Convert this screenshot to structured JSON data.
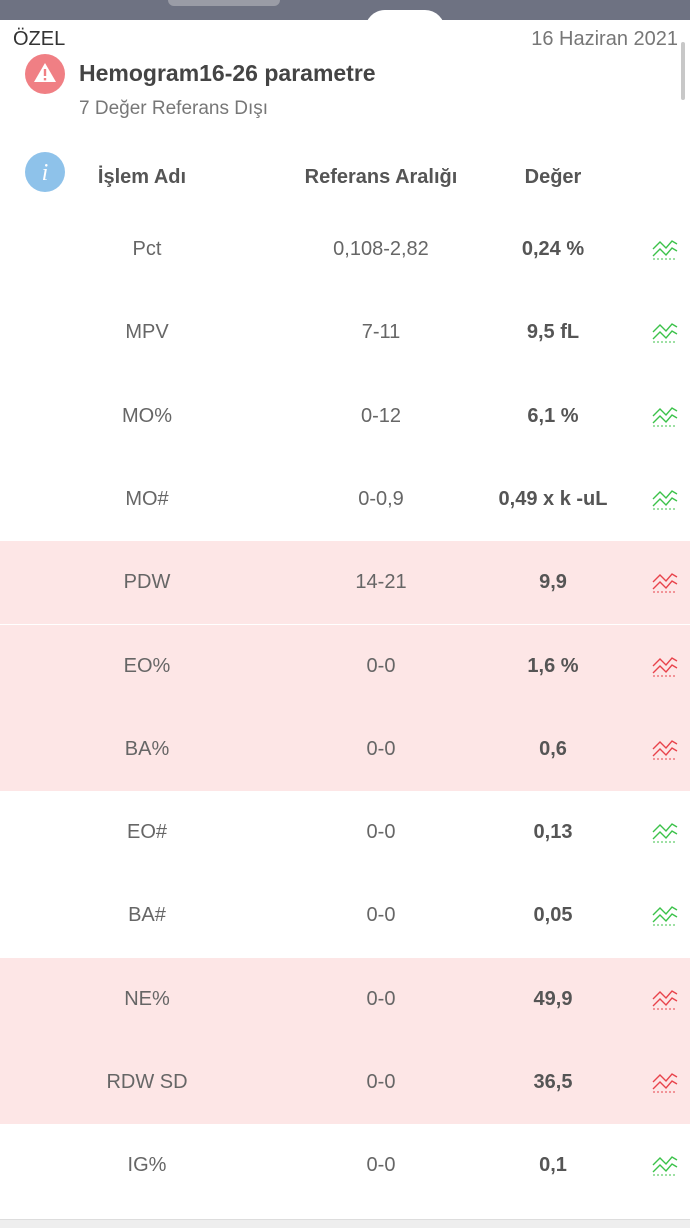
{
  "header": {
    "left_label": "ÖZEL",
    "date": "16 Haziran 2021",
    "title": "Hemogram16-26 parametre",
    "subtitle": "7 Değer Referans Dışı"
  },
  "table": {
    "columns": [
      "İşlem Adı",
      "Referans Aralığı",
      "Değer"
    ],
    "rows": [
      {
        "name": "Pct",
        "range": "0,108-2,82",
        "value": "0,24 %",
        "out_of_range": false
      },
      {
        "name": "MPV",
        "range": "7-11",
        "value": "9,5 fL",
        "out_of_range": false
      },
      {
        "name": "MO%",
        "range": "0-12",
        "value": "6,1 %",
        "out_of_range": false
      },
      {
        "name": "MO#",
        "range": "0-0,9",
        "value": "0,49 x k -uL",
        "out_of_range": false
      },
      {
        "name": "PDW",
        "range": "14-21",
        "value": "9,9",
        "out_of_range": true
      },
      {
        "name": "EO%",
        "range": "0-0",
        "value": "1,6 %",
        "out_of_range": true
      },
      {
        "name": "BA%",
        "range": "0-0",
        "value": "0,6",
        "out_of_range": true
      },
      {
        "name": "EO#",
        "range": "0-0",
        "value": "0,13",
        "out_of_range": false
      },
      {
        "name": "BA#",
        "range": "0-0",
        "value": "0,05",
        "out_of_range": false
      },
      {
        "name": "NE%",
        "range": "0-0",
        "value": "49,9",
        "out_of_range": true
      },
      {
        "name": "RDW SD",
        "range": "0-0",
        "value": "36,5",
        "out_of_range": true
      },
      {
        "name": "IG%",
        "range": "0-0",
        "value": "0,1",
        "out_of_range": false
      }
    ]
  }
}
